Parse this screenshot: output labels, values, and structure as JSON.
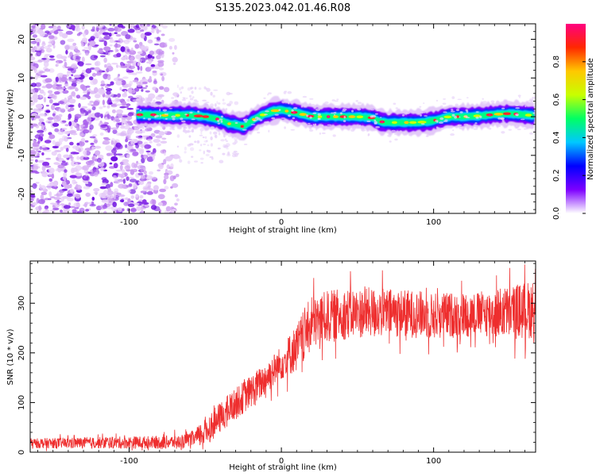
{
  "title": "S135.2023.042.01.46.R08",
  "chart_data": [
    {
      "type": "heatmap",
      "name": "spectrogram",
      "xlabel": "Height of straight line (km)",
      "ylabel": "Frequency (Hz)",
      "xlim": [
        -165,
        167
      ],
      "ylim": [
        -25,
        24
      ],
      "xticks": [
        -100,
        0,
        100
      ],
      "yticks": [
        -20,
        -10,
        0,
        10,
        20
      ],
      "noise_region_x": [
        -165,
        -68
      ],
      "ridge": {
        "x": [
          -95,
          -85,
          -75,
          -60,
          -50,
          -40,
          -35,
          -30,
          -25,
          -20,
          -15,
          -10,
          -5,
          0,
          5,
          10,
          20,
          30,
          40,
          50,
          60,
          65,
          70,
          80,
          90,
          95,
          100,
          110,
          120,
          130,
          140,
          150,
          160,
          167
        ],
        "freq": [
          0.5,
          0.5,
          0.3,
          0.4,
          0.0,
          -0.8,
          -1.8,
          -2.0,
          -2.6,
          -1.2,
          0.0,
          0.8,
          1.5,
          1.8,
          1.3,
          1.0,
          0.0,
          0.0,
          0.0,
          0.0,
          -0.3,
          -1.3,
          -1.5,
          -1.5,
          -1.5,
          -1.3,
          -1.0,
          0.0,
          0.0,
          0.2,
          0.6,
          0.8,
          0.5,
          0.2
        ]
      },
      "colorbar": {
        "label": "Normalized spectral amplitude",
        "range": [
          0.0,
          1.0
        ],
        "ticks": [
          "0.0",
          "0.2",
          "0.4",
          "0.6",
          "0.8"
        ],
        "tick_values": [
          0.0,
          0.2,
          0.4,
          0.6,
          0.8
        ],
        "colors": [
          "#ffffff",
          "#7d00ff",
          "#0000ff",
          "#00c8ff",
          "#00ff64",
          "#c8ff00",
          "#ffc800",
          "#ff2800",
          "#ff0080"
        ]
      }
    },
    {
      "type": "line",
      "name": "snr",
      "xlabel": "Height of straight line (km)",
      "ylabel": "SNR (10 * v/v)",
      "xlim": [
        -165,
        167
      ],
      "ylim": [
        0,
        385
      ],
      "xticks": [
        -100,
        0,
        100
      ],
      "yticks": [
        0,
        100,
        200,
        300
      ],
      "color": "#ee2e2e",
      "trend": {
        "x": [
          -165,
          -120,
          -80,
          -65,
          -55,
          -45,
          -35,
          -25,
          -15,
          -5,
          5,
          10,
          15,
          20,
          30,
          40,
          60,
          80,
          100,
          120,
          140,
          160,
          167
        ],
        "y": [
          18,
          19,
          20,
          21,
          30,
          55,
          85,
          110,
          135,
          165,
          195,
          210,
          235,
          260,
          272,
          278,
          282,
          280,
          275,
          277,
          280,
          285,
          290
        ]
      },
      "noise_amplitude": {
        "x": [
          -165,
          -60,
          -50,
          0,
          15,
          60,
          130,
          150,
          167
        ],
        "amp": [
          10,
          14,
          30,
          35,
          55,
          50,
          45,
          55,
          60
        ]
      }
    }
  ]
}
